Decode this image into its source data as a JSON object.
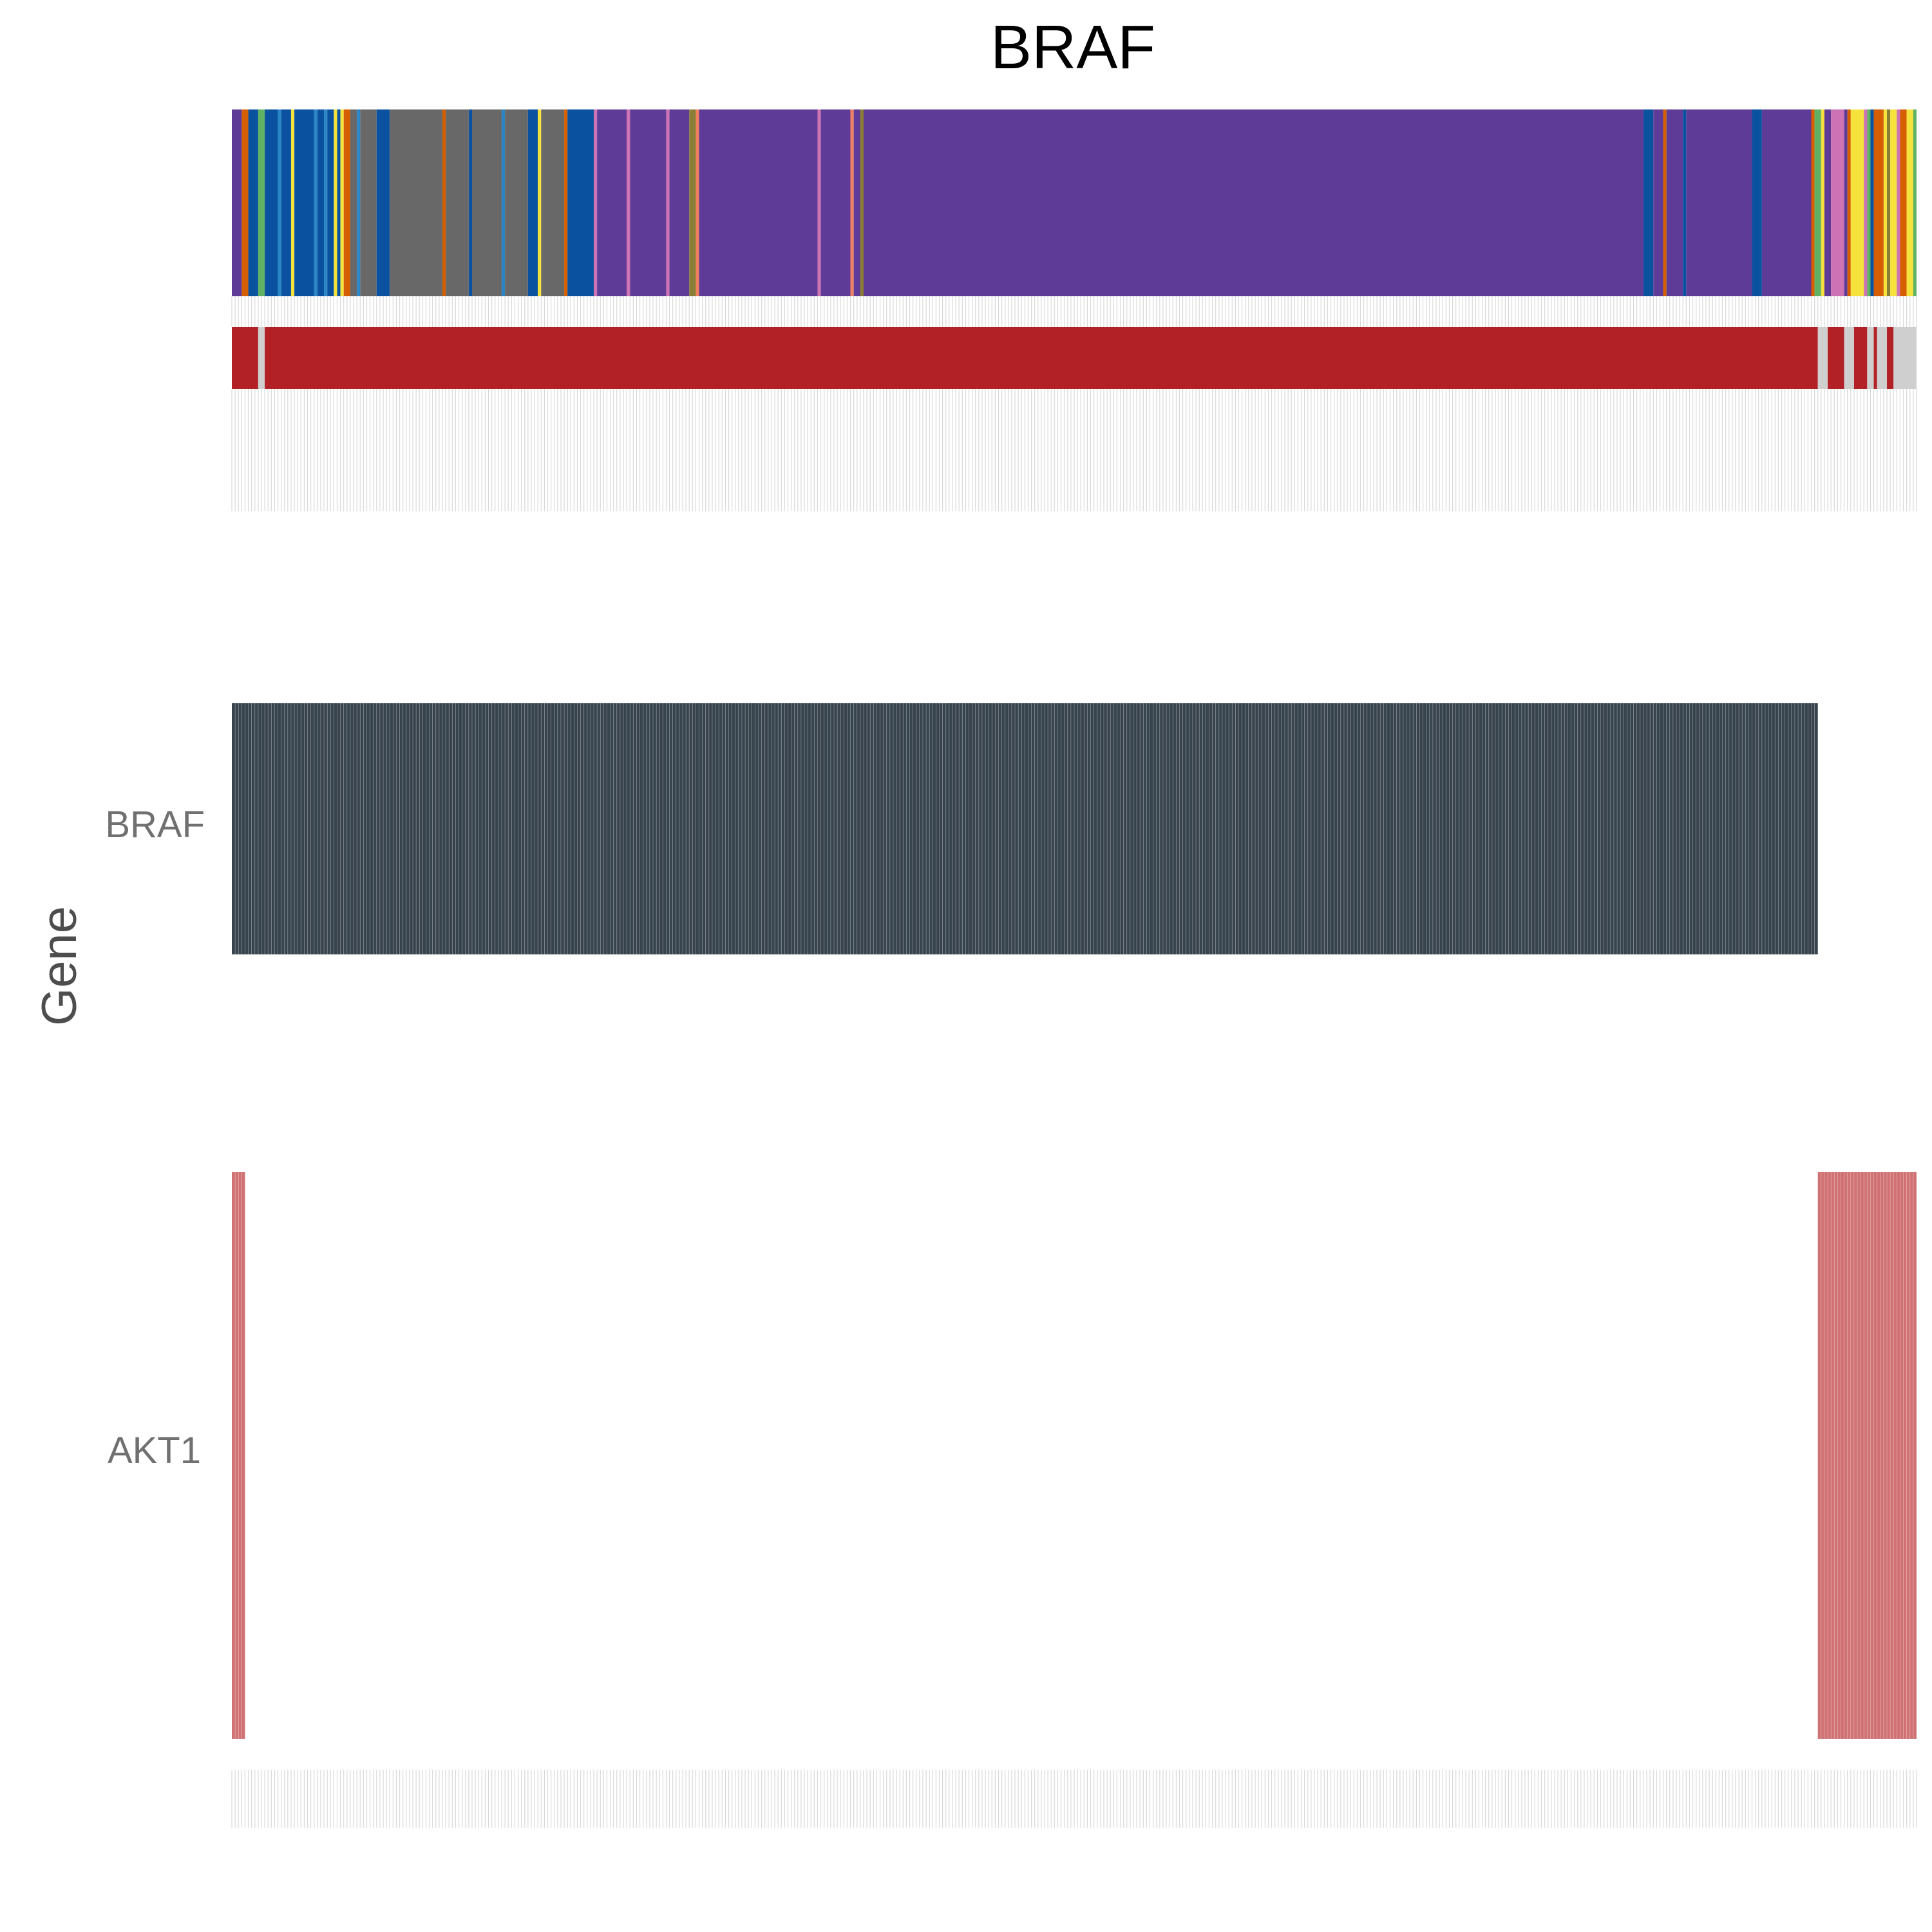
{
  "chart_data": {
    "type": "heatmap",
    "title": "BRAF",
    "ylabel": "Gene",
    "genes": [
      "BRAF",
      "AKT1"
    ],
    "colors": {
      "braf_mut": "#37434d",
      "akt1_mut": "#d07274",
      "grid": "#d9d9d9",
      "status_red": "#b22125",
      "status_gray": "#cfcfcf",
      "purple": "#5e3b97",
      "gray": "#686868",
      "blue": "#0a52a0",
      "yellow": "#f5e23c",
      "orange": "#d55e00",
      "green": "#5fb163",
      "pink": "#cd72b4",
      "lightblue": "#2a86c7",
      "salmon": "#f08060",
      "olive": "#8a7d36"
    },
    "sample_count": 512,
    "tissue_track": [
      {
        "start": 0,
        "end": 3,
        "color": "purple"
      },
      {
        "start": 3,
        "end": 5,
        "color": "orange"
      },
      {
        "start": 5,
        "end": 8,
        "color": "blue"
      },
      {
        "start": 8,
        "end": 10,
        "color": "green"
      },
      {
        "start": 10,
        "end": 14,
        "color": "blue"
      },
      {
        "start": 14,
        "end": 15,
        "color": "lightblue"
      },
      {
        "start": 15,
        "end": 18,
        "color": "blue"
      },
      {
        "start": 18,
        "end": 19,
        "color": "yellow"
      },
      {
        "start": 19,
        "end": 25,
        "color": "blue"
      },
      {
        "start": 25,
        "end": 26,
        "color": "lightblue"
      },
      {
        "start": 26,
        "end": 28,
        "color": "blue"
      },
      {
        "start": 28,
        "end": 29,
        "color": "lightblue"
      },
      {
        "start": 29,
        "end": 31,
        "color": "blue"
      },
      {
        "start": 31,
        "end": 32,
        "color": "yellow"
      },
      {
        "start": 32,
        "end": 33,
        "color": "blue"
      },
      {
        "start": 33,
        "end": 34,
        "color": "yellow"
      },
      {
        "start": 34,
        "end": 36,
        "color": "orange"
      },
      {
        "start": 36,
        "end": 38,
        "color": "gray"
      },
      {
        "start": 38,
        "end": 39,
        "color": "lightblue"
      },
      {
        "start": 39,
        "end": 44,
        "color": "gray"
      },
      {
        "start": 44,
        "end": 48,
        "color": "blue"
      },
      {
        "start": 48,
        "end": 64,
        "color": "gray"
      },
      {
        "start": 64,
        "end": 65,
        "color": "orange"
      },
      {
        "start": 65,
        "end": 72,
        "color": "gray"
      },
      {
        "start": 72,
        "end": 73,
        "color": "blue"
      },
      {
        "start": 73,
        "end": 82,
        "color": "gray"
      },
      {
        "start": 82,
        "end": 83,
        "color": "lightblue"
      },
      {
        "start": 83,
        "end": 90,
        "color": "gray"
      },
      {
        "start": 90,
        "end": 93,
        "color": "blue"
      },
      {
        "start": 93,
        "end": 94,
        "color": "yellow"
      },
      {
        "start": 94,
        "end": 101,
        "color": "gray"
      },
      {
        "start": 101,
        "end": 102,
        "color": "orange"
      },
      {
        "start": 102,
        "end": 110,
        "color": "blue"
      },
      {
        "start": 110,
        "end": 111,
        "color": "pink"
      },
      {
        "start": 111,
        "end": 120,
        "color": "purple"
      },
      {
        "start": 120,
        "end": 121,
        "color": "pink"
      },
      {
        "start": 121,
        "end": 132,
        "color": "purple"
      },
      {
        "start": 132,
        "end": 133,
        "color": "pink"
      },
      {
        "start": 133,
        "end": 139,
        "color": "purple"
      },
      {
        "start": 139,
        "end": 141,
        "color": "olive"
      },
      {
        "start": 141,
        "end": 142,
        "color": "salmon"
      },
      {
        "start": 142,
        "end": 178,
        "color": "purple"
      },
      {
        "start": 178,
        "end": 179,
        "color": "pink"
      },
      {
        "start": 179,
        "end": 188,
        "color": "purple"
      },
      {
        "start": 188,
        "end": 189,
        "color": "salmon"
      },
      {
        "start": 189,
        "end": 191,
        "color": "purple"
      },
      {
        "start": 191,
        "end": 192,
        "color": "olive"
      },
      {
        "start": 192,
        "end": 429,
        "color": "purple"
      },
      {
        "start": 429,
        "end": 432,
        "color": "blue"
      },
      {
        "start": 432,
        "end": 435,
        "color": "purple"
      },
      {
        "start": 435,
        "end": 436,
        "color": "orange"
      },
      {
        "start": 436,
        "end": 441,
        "color": "purple"
      },
      {
        "start": 441,
        "end": 442,
        "color": "blue"
      },
      {
        "start": 442,
        "end": 462,
        "color": "purple"
      },
      {
        "start": 462,
        "end": 465,
        "color": "blue"
      },
      {
        "start": 465,
        "end": 480,
        "color": "purple"
      },
      {
        "start": 480,
        "end": 481,
        "color": "orange"
      },
      {
        "start": 481,
        "end": 483,
        "color": "green"
      },
      {
        "start": 483,
        "end": 484,
        "color": "yellow"
      },
      {
        "start": 484,
        "end": 486,
        "color": "purple"
      },
      {
        "start": 486,
        "end": 490,
        "color": "pink"
      },
      {
        "start": 490,
        "end": 491,
        "color": "purple"
      },
      {
        "start": 491,
        "end": 492,
        "color": "orange"
      },
      {
        "start": 492,
        "end": 496,
        "color": "yellow"
      },
      {
        "start": 496,
        "end": 497,
        "color": "pink"
      },
      {
        "start": 497,
        "end": 498,
        "color": "green"
      },
      {
        "start": 498,
        "end": 499,
        "color": "blue"
      },
      {
        "start": 499,
        "end": 502,
        "color": "orange"
      },
      {
        "start": 502,
        "end": 503,
        "color": "yellow"
      },
      {
        "start": 503,
        "end": 504,
        "color": "olive"
      },
      {
        "start": 504,
        "end": 506,
        "color": "yellow"
      },
      {
        "start": 506,
        "end": 507,
        "color": "pink"
      },
      {
        "start": 507,
        "end": 509,
        "color": "orange"
      },
      {
        "start": 509,
        "end": 511,
        "color": "yellow"
      },
      {
        "start": 511,
        "end": 512,
        "color": "green"
      }
    ],
    "status_track": [
      {
        "start": 0,
        "end": 8,
        "color": "status_red"
      },
      {
        "start": 8,
        "end": 10,
        "color": "status_gray"
      },
      {
        "start": 10,
        "end": 482,
        "color": "status_red"
      },
      {
        "start": 482,
        "end": 485,
        "color": "status_gray"
      },
      {
        "start": 485,
        "end": 490,
        "color": "status_red"
      },
      {
        "start": 490,
        "end": 493,
        "color": "status_gray"
      },
      {
        "start": 493,
        "end": 497,
        "color": "status_red"
      },
      {
        "start": 497,
        "end": 499,
        "color": "status_gray"
      },
      {
        "start": 499,
        "end": 500,
        "color": "status_red"
      },
      {
        "start": 500,
        "end": 503,
        "color": "status_gray"
      },
      {
        "start": 503,
        "end": 505,
        "color": "status_red"
      },
      {
        "start": 505,
        "end": 512,
        "color": "status_gray"
      }
    ],
    "braf_mutated": {
      "start": 0,
      "end": 482
    },
    "akt1_mutated": [
      {
        "start": 0,
        "end": 4
      },
      {
        "start": 482,
        "end": 512
      }
    ]
  }
}
